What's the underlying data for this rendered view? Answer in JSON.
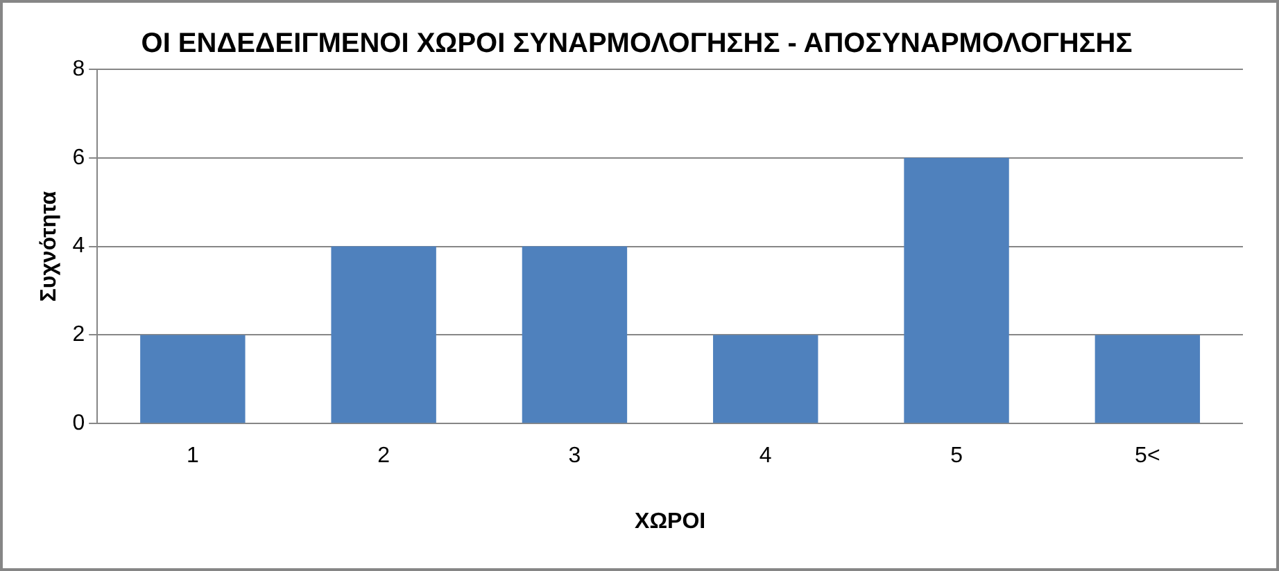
{
  "chart_data": {
    "type": "bar",
    "title": "ΟΙ ΕΝΔΕΔΕΙΓΜΕΝΟΙ ΧΩΡΟΙ ΣΥΝΑΡΜΟΛΟΓΗΣΗΣ - ΑΠΟΣΥΝΑΡΜΟΛΟΓΗΣΗΣ",
    "xlabel": "ΧΩΡΟΙ",
    "ylabel": "Συχνότητα",
    "categories": [
      "1",
      "2",
      "3",
      "4",
      "5",
      "5<"
    ],
    "values": [
      2,
      4,
      4,
      2,
      6,
      2
    ],
    "color": "#4f81bd",
    "ylim": [
      0,
      8
    ],
    "yticks": [
      0,
      2,
      4,
      6,
      8
    ],
    "grid": "y",
    "legend": false
  }
}
